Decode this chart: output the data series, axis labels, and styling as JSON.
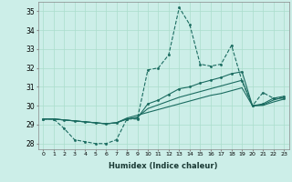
{
  "xlabel": "Humidex (Indice chaleur)",
  "ylabel": "",
  "bg_color": "#cceee8",
  "grid_color": "#aaddcc",
  "line_color": "#1a6b60",
  "xlim": [
    -0.5,
    23.5
  ],
  "ylim": [
    27.7,
    35.5
  ],
  "xtick_labels": [
    "0",
    "1",
    "2",
    "3",
    "4",
    "5",
    "6",
    "7",
    "8",
    "9",
    "10",
    "11",
    "12",
    "13",
    "14",
    "15",
    "16",
    "17",
    "18",
    "19",
    "20",
    "21",
    "22",
    "23"
  ],
  "ytick_labels": [
    "28",
    "29",
    "30",
    "31",
    "32",
    "33",
    "34",
    "35"
  ],
  "ytick_vals": [
    28,
    29,
    30,
    31,
    32,
    33,
    34,
    35
  ],
  "series": [
    [
      29.3,
      29.3,
      28.8,
      28.2,
      28.1,
      28.0,
      28.0,
      28.2,
      29.3,
      29.3,
      31.9,
      32.0,
      32.7,
      35.2,
      34.3,
      32.2,
      32.1,
      32.2,
      33.2,
      31.3,
      30.0,
      30.7,
      30.4,
      30.4
    ],
    [
      29.3,
      29.3,
      29.25,
      29.2,
      29.15,
      29.1,
      29.05,
      29.1,
      29.3,
      29.35,
      30.1,
      30.3,
      30.6,
      30.9,
      31.0,
      31.2,
      31.35,
      31.5,
      31.7,
      31.8,
      30.0,
      30.1,
      30.4,
      30.5
    ],
    [
      29.3,
      29.3,
      29.25,
      29.2,
      29.15,
      29.1,
      29.05,
      29.1,
      29.3,
      29.4,
      29.85,
      30.05,
      30.25,
      30.45,
      30.6,
      30.75,
      30.9,
      31.05,
      31.2,
      31.35,
      30.0,
      30.05,
      30.3,
      30.45
    ],
    [
      29.3,
      29.3,
      29.25,
      29.2,
      29.15,
      29.1,
      29.05,
      29.1,
      29.35,
      29.5,
      29.65,
      29.8,
      29.95,
      30.1,
      30.25,
      30.4,
      30.55,
      30.65,
      30.8,
      30.95,
      30.0,
      30.02,
      30.2,
      30.35
    ]
  ],
  "series_styles": [
    {
      "linestyle": "--",
      "marker": ".",
      "linewidth": 0.8,
      "markersize": 3
    },
    {
      "linestyle": "-",
      "marker": ".",
      "linewidth": 0.8,
      "markersize": 3
    },
    {
      "linestyle": "-",
      "marker": null,
      "linewidth": 0.8,
      "markersize": 0
    },
    {
      "linestyle": "-",
      "marker": null,
      "linewidth": 0.8,
      "markersize": 0
    }
  ]
}
